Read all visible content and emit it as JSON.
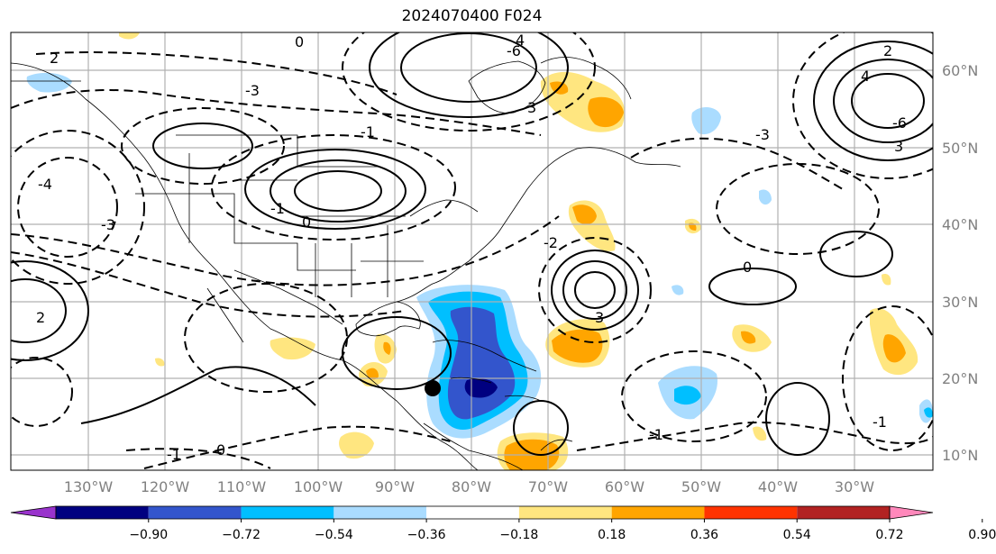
{
  "title": "2024070400 F024",
  "lon_labels": [
    "130°W",
    "120°W",
    "110°W",
    "100°W",
    "90°W",
    "80°W",
    "70°W",
    "60°W",
    "50°W",
    "40°W",
    "30°W"
  ],
  "lat_labels": [
    "60°N",
    "50°N",
    "40°N",
    "30°N",
    "20°N",
    "10°N"
  ],
  "colorbar": {
    "ticks": [
      "−0.90",
      "−0.72",
      "−0.54",
      "−0.36",
      "−0.18",
      "0.18",
      "0.36",
      "0.54",
      "0.72",
      "0.90"
    ],
    "colors": [
      "#9933cc",
      "#000080",
      "#3355cc",
      "#00bfff",
      "#aadcff",
      "#ffffff",
      "#ffe680",
      "#ffa500",
      "#ff3300",
      "#b22222",
      "#ff88bb"
    ]
  },
  "contour_labels": [
    "2",
    "-3",
    "0",
    "-1",
    "4",
    "-6",
    "3",
    "-2",
    "1",
    "-4"
  ],
  "marker": "storm-center-dot",
  "colors": {
    "anomaly_high": "#ffa500",
    "anomaly_low": "#3355cc",
    "grid": "#b0b0b0"
  }
}
